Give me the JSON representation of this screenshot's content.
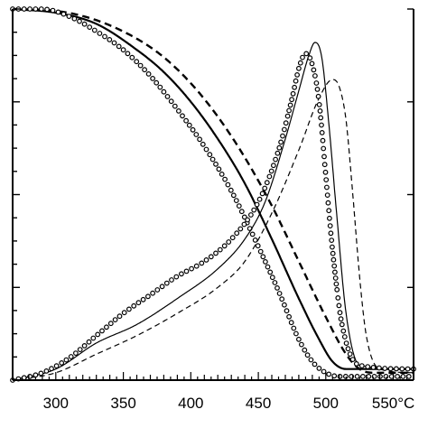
{
  "chart_data": {
    "type": "line",
    "title": "",
    "xlabel": "",
    "ylabel": "",
    "x_unit": "°C",
    "xlim": [
      268,
      565
    ],
    "ylim_left": [
      0,
      100
    ],
    "ylim_right": [
      0,
      1
    ],
    "grid": false,
    "legend": "none",
    "x_ticks": [
      300,
      350,
      400,
      450,
      500,
      550
    ],
    "x_tick_labels": [
      "300",
      "350",
      "400",
      "450",
      "500",
      "550°C"
    ],
    "right_tick_values": [
      0.25,
      0.5,
      0.75,
      1.0
    ],
    "series": [
      {
        "role": "integral",
        "style": "dashed",
        "axis": "left",
        "x": [
          268,
          300,
          330,
          360,
          380,
          400,
          420,
          440,
          460,
          480,
          500,
          515,
          525,
          535,
          550,
          565
        ],
        "y": [
          100,
          99.5,
          97,
          92,
          87,
          80,
          71,
          60,
          47,
          32,
          17,
          7,
          3,
          2,
          2,
          2
        ]
      },
      {
        "role": "integral",
        "style": "solid",
        "axis": "left",
        "x": [
          268,
          300,
          330,
          360,
          380,
          400,
          420,
          440,
          460,
          480,
          495,
          505,
          515,
          530,
          550,
          565
        ],
        "y": [
          100,
          99,
          96,
          89,
          83,
          75,
          65,
          53,
          38,
          22,
          11,
          5,
          3,
          3,
          3,
          3
        ]
      },
      {
        "role": "integral",
        "style": "open-circle",
        "axis": "left",
        "x": [
          268,
          290,
          310,
          330,
          350,
          370,
          390,
          410,
          430,
          450,
          465,
          480,
          490,
          500,
          510,
          525,
          550,
          565
        ],
        "y": [
          100,
          100,
          98,
          94,
          89,
          82,
          73,
          63,
          51,
          36,
          24,
          11,
          5,
          2,
          1,
          1,
          1,
          1
        ]
      },
      {
        "role": "rate",
        "style": "thin-dashed",
        "axis": "left",
        "x": [
          268,
          300,
          330,
          360,
          390,
          420,
          440,
          460,
          480,
          495,
          505,
          510,
          515,
          520,
          525,
          530,
          540,
          565
        ],
        "y": [
          0,
          2,
          7,
          12,
          18,
          25,
          32,
          45,
          62,
          76,
          81,
          79,
          70,
          50,
          28,
          12,
          3,
          2
        ]
      },
      {
        "role": "rate",
        "style": "thin-solid",
        "axis": "left",
        "x": [
          268,
          300,
          330,
          360,
          390,
          420,
          440,
          455,
          470,
          480,
          487,
          492,
          497,
          502,
          508,
          515,
          525,
          565
        ],
        "y": [
          0,
          3,
          10,
          15,
          22,
          30,
          38,
          48,
          65,
          78,
          87,
          91,
          87,
          70,
          45,
          18,
          4,
          3
        ]
      },
      {
        "role": "rate",
        "style": "open-circle",
        "axis": "left",
        "x": [
          268,
          290,
          310,
          330,
          350,
          370,
          390,
          410,
          430,
          450,
          465,
          475,
          480,
          485,
          490,
          495,
          500,
          505,
          512,
          525,
          565
        ],
        "y": [
          0,
          2,
          6,
          12,
          18,
          23,
          28,
          32,
          38,
          48,
          62,
          76,
          84,
          88,
          85,
          75,
          55,
          35,
          15,
          4,
          3
        ]
      }
    ]
  }
}
